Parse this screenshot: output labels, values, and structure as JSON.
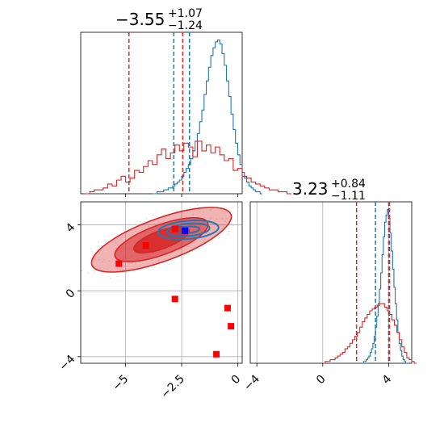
{
  "chart_data": [
    {
      "type": "histogram",
      "panel": "marginal-x",
      "title": {
        "value": "−3.55",
        "plus": "+1.07",
        "minus": "−1.24"
      },
      "xlim": [
        -7,
        0.2
      ],
      "xticks": [
        -5.0,
        -2.5,
        0.0
      ],
      "series": [
        {
          "color": "#1f77b4",
          "bins": {
            "start": -3.8,
            "width": 0.1
          },
          "counts": [
            0,
            0,
            1,
            1,
            1,
            2,
            2,
            3,
            3,
            4,
            5,
            6,
            7,
            9,
            11,
            13,
            15,
            18,
            22,
            27,
            31,
            37,
            43,
            51,
            58,
            65,
            71,
            75,
            78,
            79,
            77,
            72,
            66,
            58,
            50,
            41,
            33,
            26,
            20,
            15,
            11,
            8,
            6,
            4,
            3,
            2,
            1,
            1,
            0
          ],
          "quantiles": [
            -2.85,
            -2.15
          ]
        },
        {
          "color": "#d62728",
          "bins": {
            "start": -6.8,
            "width": 0.2
          },
          "counts": [
            0,
            1,
            2,
            2,
            3,
            5,
            4,
            7,
            9,
            6,
            8,
            12,
            11,
            14,
            17,
            15,
            20,
            23,
            18,
            21,
            25,
            22,
            26,
            24,
            19,
            27,
            22,
            25,
            21,
            24,
            20,
            17,
            18,
            12,
            13,
            9,
            8,
            6,
            5,
            4,
            3,
            2,
            2,
            1,
            1,
            0
          ],
          "quantiles": [
            -4.85,
            -2.45
          ]
        }
      ]
    },
    {
      "type": "scatter",
      "panel": "joint",
      "xlim": [
        -7,
        0.2
      ],
      "ylim": [
        -4.4,
        5.4
      ],
      "xticks": [
        -5.0,
        -2.5,
        0.0
      ],
      "yticks": [
        -4,
        0,
        4
      ],
      "grid": true,
      "contours": [
        {
          "color": "#d62728",
          "center": [
            -3.4,
            3.1
          ],
          "rx": [
            3.3,
            2.2,
            1.3
          ],
          "ry": [
            1.3,
            0.9,
            0.55
          ],
          "angle": -20
        },
        {
          "color": "#1f77b4",
          "center": [
            -2.2,
            3.7
          ],
          "rx": [
            1.35,
            0.95,
            0.5
          ],
          "ry": [
            0.55,
            0.38,
            0.2
          ],
          "angle": -5
        }
      ],
      "points": [
        {
          "x": -5.3,
          "y": 1.65,
          "color": "#ff0000",
          "marker": "square"
        },
        {
          "x": -4.1,
          "y": 2.75,
          "color": "#ff0000",
          "marker": "square"
        },
        {
          "x": -2.8,
          "y": 3.75,
          "color": "#ff0000",
          "marker": "square"
        },
        {
          "x": -2.8,
          "y": -0.5,
          "color": "#ff0000",
          "marker": "square"
        },
        {
          "x": -0.45,
          "y": -1.05,
          "color": "#ff0000",
          "marker": "square"
        },
        {
          "x": -0.3,
          "y": -2.15,
          "color": "#ff0000",
          "marker": "square"
        },
        {
          "x": -0.95,
          "y": -3.85,
          "color": "#ff0000",
          "marker": "square"
        },
        {
          "x": -2.35,
          "y": 3.65,
          "color": "#0000ff",
          "marker": "square"
        }
      ]
    },
    {
      "type": "histogram",
      "panel": "marginal-y",
      "title": {
        "value": "3.23",
        "plus": "+0.84",
        "minus": "−1.11"
      },
      "xlim": [
        -4.4,
        5.4
      ],
      "xticks": [
        -4,
        0,
        4
      ],
      "series": [
        {
          "color": "#1f77b4",
          "bins": {
            "start": 2.4,
            "width": 0.08
          },
          "counts": [
            0,
            1,
            1,
            2,
            3,
            4,
            6,
            8,
            11,
            15,
            20,
            26,
            33,
            41,
            50,
            60,
            70,
            78,
            82,
            85,
            80,
            72,
            62,
            52,
            42,
            33,
            24,
            17,
            11,
            7,
            4,
            2,
            1,
            0
          ],
          "quantiles": [
            3.2,
            4.0
          ]
        },
        {
          "color": "#d62728",
          "bins": {
            "start": 0.0,
            "width": 0.15
          },
          "counts": [
            0,
            1,
            1,
            2,
            2,
            3,
            4,
            5,
            6,
            8,
            9,
            11,
            13,
            15,
            17,
            20,
            23,
            25,
            27,
            29,
            30,
            31,
            32,
            33,
            33,
            31,
            29,
            27,
            24,
            21,
            17,
            13,
            9,
            6,
            3,
            2,
            1,
            0
          ],
          "quantiles": [
            2.05,
            4.05
          ]
        }
      ]
    }
  ]
}
